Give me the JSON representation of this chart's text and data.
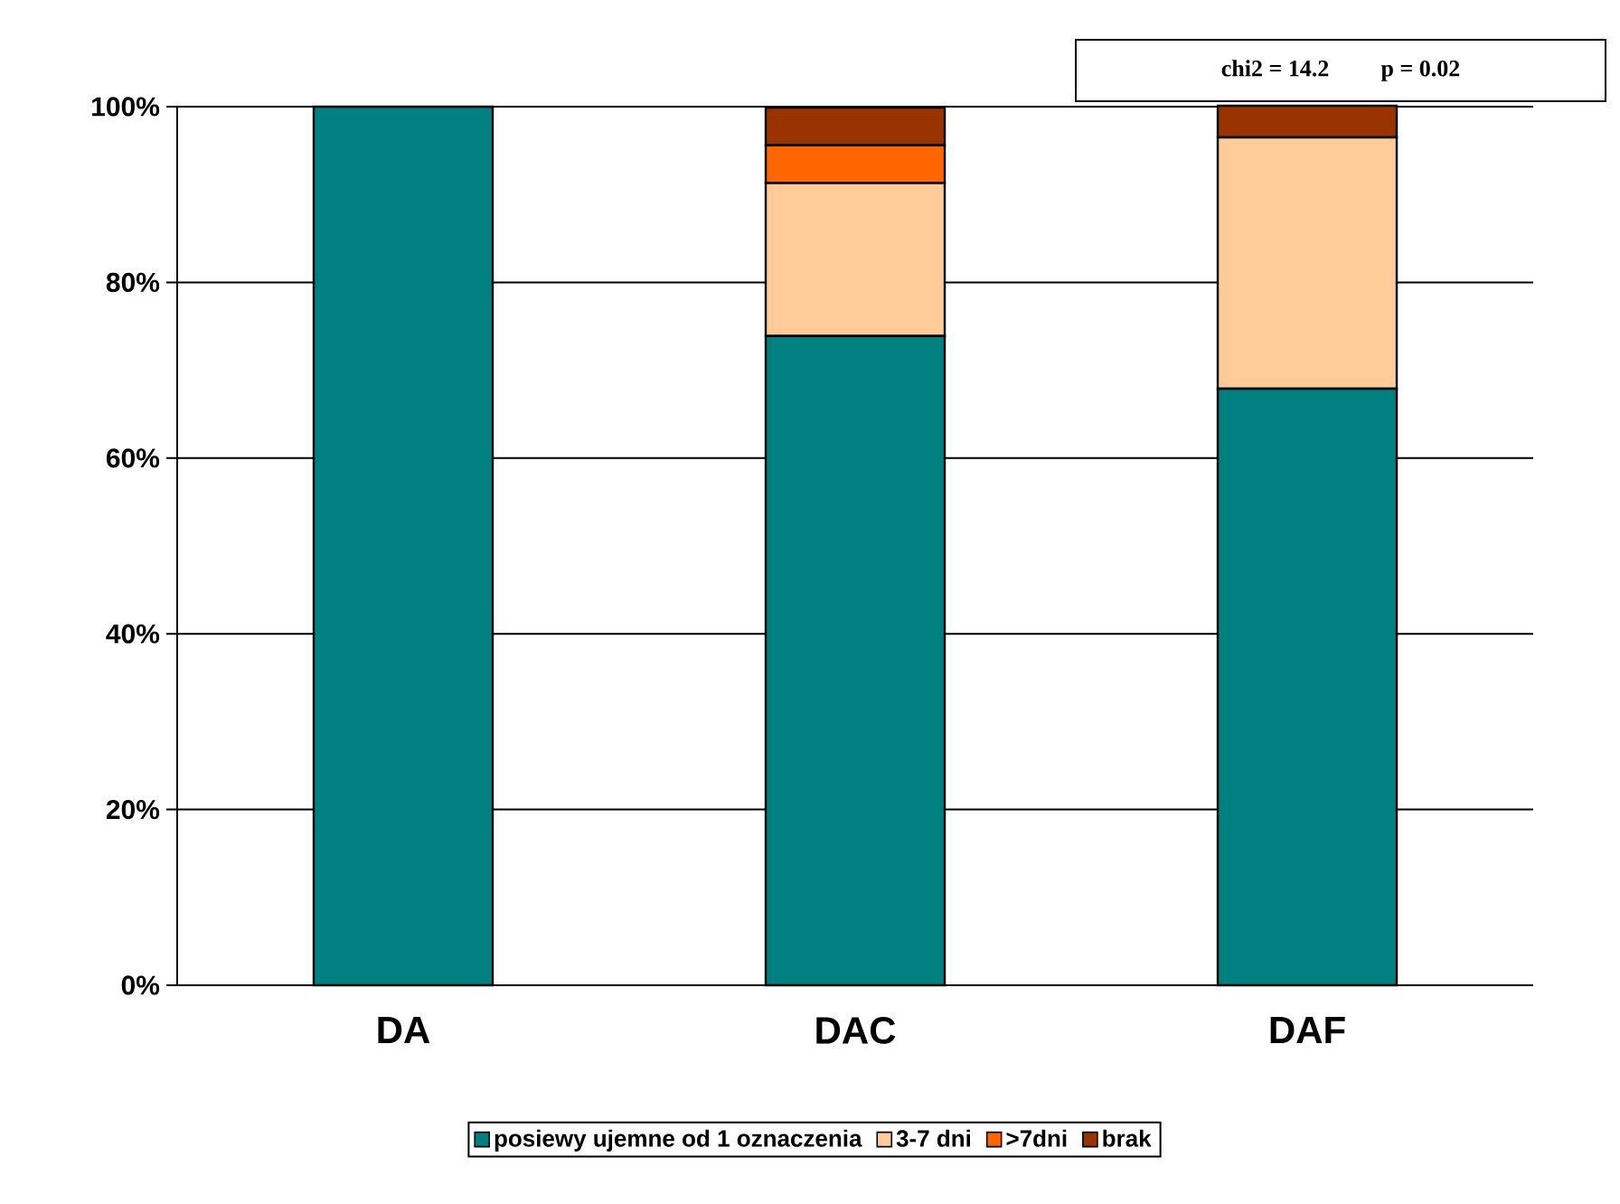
{
  "chart_data": {
    "type": "bar",
    "stacked": true,
    "categories": [
      "DA",
      "DAC",
      "DAF"
    ],
    "series": [
      {
        "name": "posiewy ujemne od 1 oznaczenia",
        "color": "#008080",
        "values": [
          100,
          73.9,
          67.9
        ]
      },
      {
        "name": "3-7 dni",
        "color": "#ffcc99",
        "values": [
          null,
          17.4,
          28.6
        ]
      },
      {
        "name": ">7dni",
        "color": "#ff6600",
        "values": [
          null,
          4.3,
          null
        ]
      },
      {
        "name": "brak",
        "color": "#993300",
        "values": [
          null,
          4.3,
          3.6
        ]
      }
    ],
    "ylim": [
      0,
      100
    ],
    "yticks": [
      {
        "value": 0,
        "label": "0%"
      },
      {
        "value": 20,
        "label": "20%"
      },
      {
        "value": 40,
        "label": "40%"
      },
      {
        "value": 60,
        "label": "60%"
      },
      {
        "value": 80,
        "label": "80%"
      },
      {
        "value": 100,
        "label": "100%"
      }
    ],
    "grid": "y",
    "legend": "bottom",
    "annotations": [
      "chi2 = 14.2      p = 0.02"
    ]
  }
}
